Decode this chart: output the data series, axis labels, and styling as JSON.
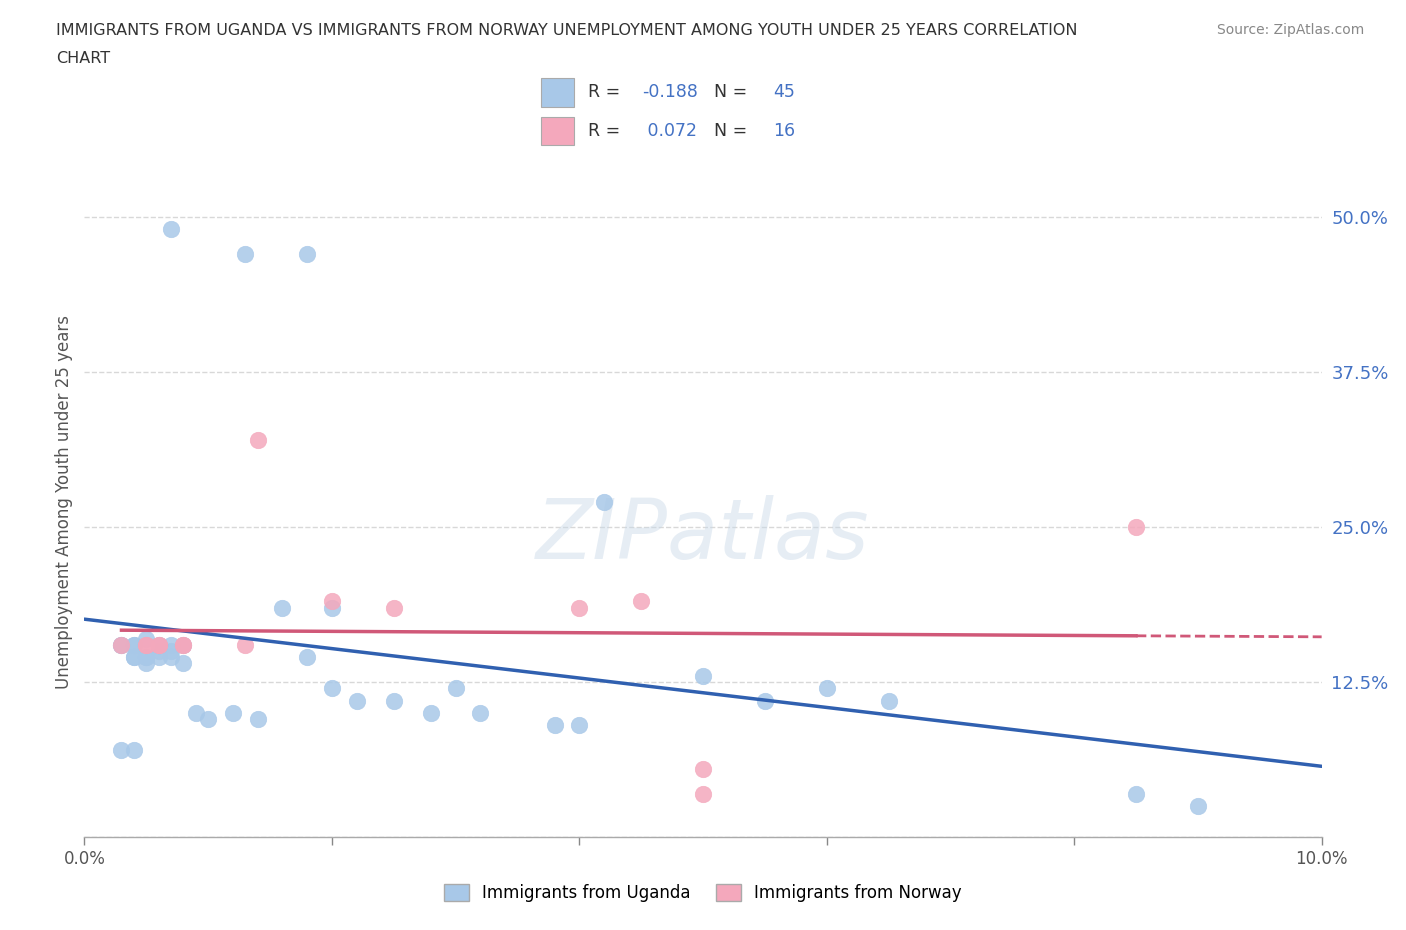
{
  "title_line1": "IMMIGRANTS FROM UGANDA VS IMMIGRANTS FROM NORWAY UNEMPLOYMENT AMONG YOUTH UNDER 25 YEARS CORRELATION",
  "title_line2": "CHART",
  "source": "Source: ZipAtlas.com",
  "ylabel": "Unemployment Among Youth under 25 years",
  "xlim": [
    0.0,
    0.1
  ],
  "ylim": [
    0.0,
    0.54
  ],
  "yticks": [
    0.0,
    0.125,
    0.25,
    0.375,
    0.5
  ],
  "ytick_labels": [
    "",
    "12.5%",
    "25.0%",
    "37.5%",
    "50.0%"
  ],
  "xticks": [
    0.0,
    0.02,
    0.04,
    0.06,
    0.08,
    0.1
  ],
  "xtick_labels": [
    "0.0%",
    "",
    "",
    "",
    "",
    "10.0%"
  ],
  "uganda_color": "#a8c8e8",
  "norway_color": "#f4a8bc",
  "uganda_line_color": "#3060b0",
  "norway_line_color": "#d05878",
  "R_uganda": -0.188,
  "N_uganda": 45,
  "R_norway": 0.072,
  "N_norway": 16,
  "uganda_scatter_x": [
    0.007,
    0.013,
    0.018,
    0.003,
    0.004,
    0.003,
    0.004,
    0.005,
    0.006,
    0.007,
    0.008,
    0.004,
    0.005,
    0.004,
    0.005,
    0.006,
    0.007,
    0.005,
    0.006,
    0.007,
    0.008,
    0.009,
    0.01,
    0.012,
    0.014,
    0.016,
    0.018,
    0.02,
    0.022,
    0.025,
    0.028,
    0.03,
    0.032,
    0.038,
    0.04,
    0.042,
    0.02,
    0.05,
    0.055,
    0.06,
    0.065,
    0.003,
    0.004,
    0.09,
    0.085
  ],
  "uganda_scatter_y": [
    0.49,
    0.47,
    0.47,
    0.155,
    0.145,
    0.155,
    0.155,
    0.145,
    0.145,
    0.15,
    0.155,
    0.155,
    0.14,
    0.145,
    0.145,
    0.15,
    0.155,
    0.16,
    0.155,
    0.145,
    0.14,
    0.1,
    0.095,
    0.1,
    0.095,
    0.185,
    0.145,
    0.12,
    0.11,
    0.11,
    0.1,
    0.12,
    0.1,
    0.09,
    0.09,
    0.27,
    0.185,
    0.13,
    0.11,
    0.12,
    0.11,
    0.07,
    0.07,
    0.025,
    0.035
  ],
  "norway_scatter_x": [
    0.003,
    0.005,
    0.006,
    0.013,
    0.005,
    0.006,
    0.008,
    0.008,
    0.014,
    0.02,
    0.025,
    0.04,
    0.045,
    0.05,
    0.085,
    0.05
  ],
  "norway_scatter_y": [
    0.155,
    0.155,
    0.155,
    0.155,
    0.155,
    0.155,
    0.155,
    0.155,
    0.32,
    0.19,
    0.185,
    0.185,
    0.19,
    0.055,
    0.25,
    0.035
  ],
  "watermark": "ZIPatlas",
  "background_color": "#ffffff",
  "grid_color": "#d8d8d8"
}
